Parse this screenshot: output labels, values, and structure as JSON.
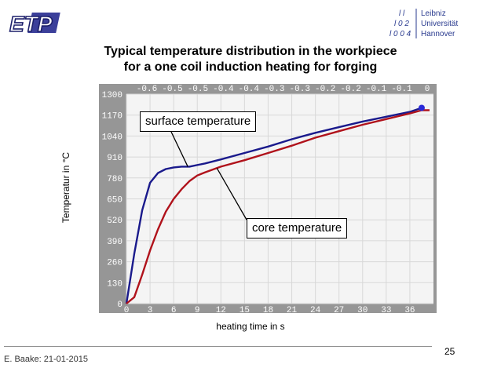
{
  "header": {
    "logo_left": "ETP",
    "logo_right_lines": [
      "Leibniz",
      "Universität",
      "Hannover"
    ],
    "logo_right_digits": [
      [
        "l",
        "l"
      ],
      [
        "l",
        "0",
        "2"
      ],
      [
        "l",
        "0",
        "0",
        "4"
      ]
    ]
  },
  "title": "Typical temperature distribution in the workpiece\nfor a one coil induction heating for forging",
  "ylabel": "Temperatur in °C",
  "xlabel": "heating time in s",
  "callouts": {
    "surface": "surface temperature",
    "core": "core temperature"
  },
  "footer": {
    "author_date": "E. Baake: 21-01-2015",
    "page_number": "25"
  },
  "colors": {
    "surface_series": "#1a1a8c",
    "core_series": "#b0121b",
    "plot_background": "#f4f4f4",
    "grid": "#d8d8d8",
    "tick_text": "#ffffff",
    "frame": "#969696",
    "marker": "#2a2ad8"
  },
  "chart_data": {
    "type": "line",
    "xlabel": "heating time in s",
    "ylabel": "Temperatur in °C",
    "xlim": [
      0,
      39
    ],
    "ylim": [
      0,
      1300
    ],
    "x_ticks_bottom": [
      "0",
      "3",
      "6",
      "9",
      "12",
      "15",
      "18",
      "21",
      "24",
      "27",
      "30",
      "33",
      "36"
    ],
    "x_ticks_top": [
      "-0.6",
      "-0.5",
      "-0.5",
      "-0.4",
      "-0.4",
      "-0.3",
      "-0.3",
      "-0.2",
      "-0.2",
      "-0.1",
      "-0.1",
      "0"
    ],
    "y_ticks": [
      "1300",
      "1170",
      "1040",
      "910",
      "780",
      "650",
      "520",
      "390",
      "260",
      "130",
      "0"
    ],
    "grid": true,
    "series": [
      {
        "name": "surface temperature",
        "x": [
          0,
          1,
          2,
          3,
          4,
          5,
          6,
          7,
          8,
          10,
          12,
          15,
          18,
          21,
          24,
          27,
          30,
          33,
          36,
          37.5
        ],
        "y": [
          0,
          310,
          580,
          750,
          810,
          835,
          845,
          850,
          850,
          870,
          895,
          935,
          975,
          1020,
          1060,
          1095,
          1130,
          1160,
          1190,
          1215
        ]
      },
      {
        "name": "core temperature",
        "x": [
          0,
          1,
          2,
          3,
          4,
          5,
          6,
          7,
          8,
          9,
          10,
          12,
          15,
          18,
          21,
          24,
          27,
          30,
          33,
          36,
          37.5,
          38.5
        ],
        "y": [
          0,
          40,
          180,
          330,
          460,
          570,
          650,
          710,
          760,
          795,
          815,
          850,
          890,
          935,
          980,
          1030,
          1070,
          1110,
          1145,
          1180,
          1200,
          1200
        ]
      }
    ]
  }
}
